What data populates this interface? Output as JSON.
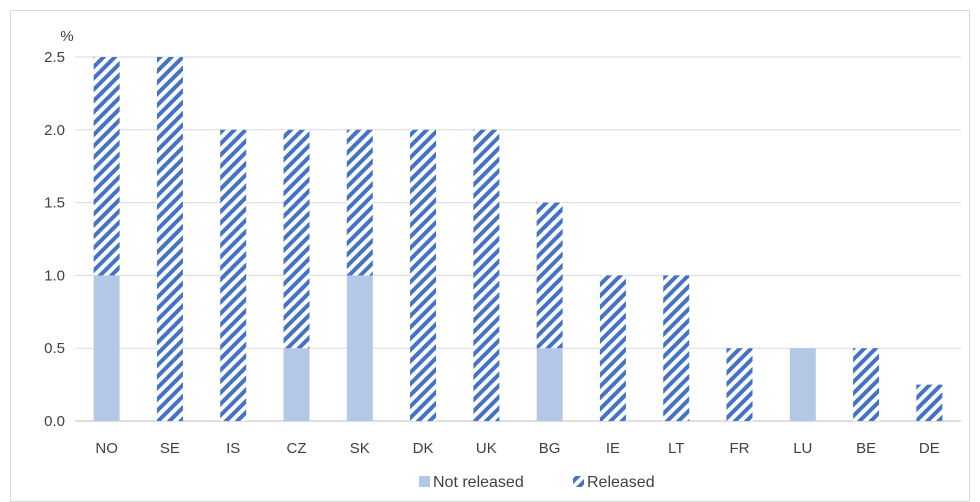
{
  "chart_data": {
    "type": "bar",
    "stacked": true,
    "categories": [
      "NO",
      "SE",
      "IS",
      "CZ",
      "SK",
      "DK",
      "UK",
      "BG",
      "IE",
      "LT",
      "FR",
      "LU",
      "BE",
      "DE"
    ],
    "series": [
      {
        "name": "Not released",
        "values": [
          1.0,
          0,
          0,
          0.5,
          1.0,
          0,
          0,
          0.5,
          0,
          0,
          0,
          0.5,
          0,
          0
        ],
        "color": "#b4c7e7",
        "pattern": "solid"
      },
      {
        "name": "Released",
        "values": [
          1.5,
          2.5,
          2.0,
          1.5,
          1.0,
          2.0,
          2.0,
          1.0,
          1.0,
          1.0,
          0.5,
          0,
          0.5,
          0.25
        ],
        "color": "#4472c4",
        "pattern": "diagonal-stripes"
      }
    ],
    "ylabel": "%",
    "ylim": [
      0,
      2.5
    ],
    "yticks": [
      "0.0",
      "0.5",
      "1.0",
      "1.5",
      "2.0",
      "2.5"
    ],
    "grid": true,
    "legend_position": "bottom-center"
  }
}
